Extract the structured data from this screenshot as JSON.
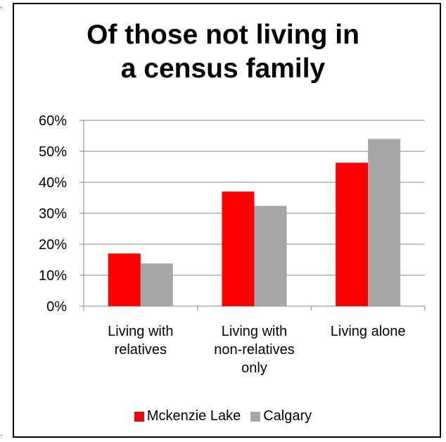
{
  "chart_data": {
    "type": "bar",
    "title_lines": [
      "Of those not living in",
      "a census family"
    ],
    "categories": [
      [
        "Living with",
        "relatives"
      ],
      [
        "Living with",
        "non-relatives",
        "only"
      ],
      [
        "Living alone"
      ]
    ],
    "series": [
      {
        "name": "Mckenzie Lake",
        "color": "#ff0000",
        "values": [
          17,
          37,
          46.3
        ]
      },
      {
        "name": "Calgary",
        "color": "#a6a6a6",
        "values": [
          13.8,
          32.4,
          54
        ]
      }
    ],
    "ylim": [
      0,
      60
    ],
    "yticks": [
      "0%",
      "10%",
      "20%",
      "30%",
      "40%",
      "50%",
      "60%"
    ],
    "grid": true,
    "legend_position": "bottom"
  }
}
